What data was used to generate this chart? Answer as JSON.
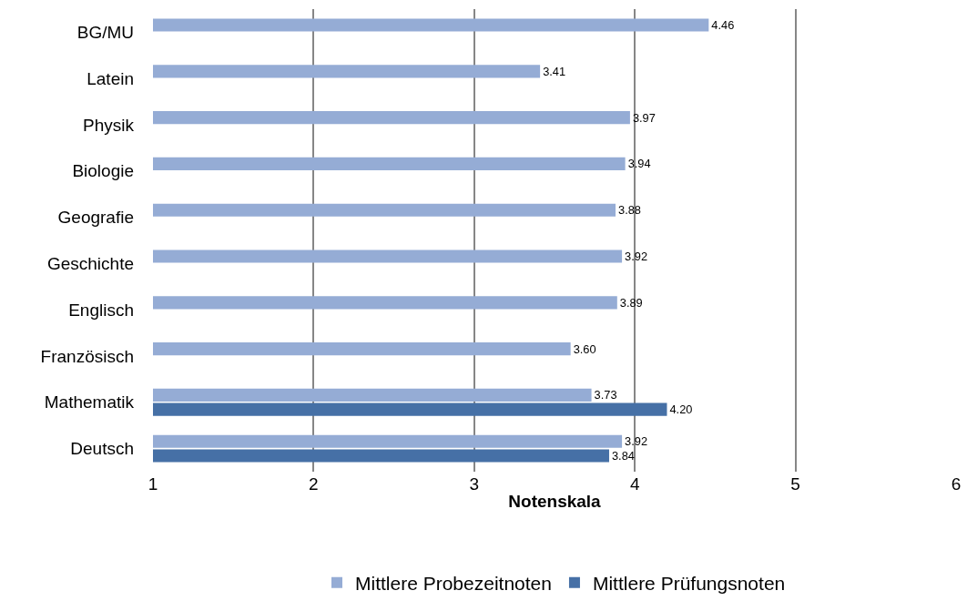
{
  "chart_data": {
    "type": "bar",
    "orientation": "horizontal",
    "xlabel": "Notenskala",
    "categories": [
      "BG/MU",
      "Latein",
      "Physik",
      "Biologie",
      "Geografie",
      "Geschichte",
      "Englisch",
      "Französisch",
      "Mathematik",
      "Deutsch"
    ],
    "series": [
      {
        "name": "Mittlere Probezeitnoten",
        "color": "#95acd5",
        "values": [
          4.46,
          3.41,
          3.97,
          3.94,
          3.88,
          3.92,
          3.89,
          3.6,
          3.73,
          3.92
        ],
        "value_labels": [
          "4.46",
          "3.41",
          "3.97",
          "3.94",
          "3.88",
          "3.92",
          "3.89",
          "3.60",
          "3.73",
          "3.92"
        ]
      },
      {
        "name": "Mittlere Prüfungsnoten",
        "color": "#4670a6",
        "values": [
          null,
          null,
          null,
          null,
          null,
          null,
          null,
          null,
          4.2,
          3.84
        ],
        "value_labels": [
          null,
          null,
          null,
          null,
          null,
          null,
          null,
          null,
          "4.20",
          "3.84"
        ]
      }
    ],
    "xlim": [
      1,
      6
    ],
    "xticks": [
      1,
      2,
      3,
      4,
      5,
      6
    ],
    "grid": "x",
    "legend": "bottom"
  }
}
